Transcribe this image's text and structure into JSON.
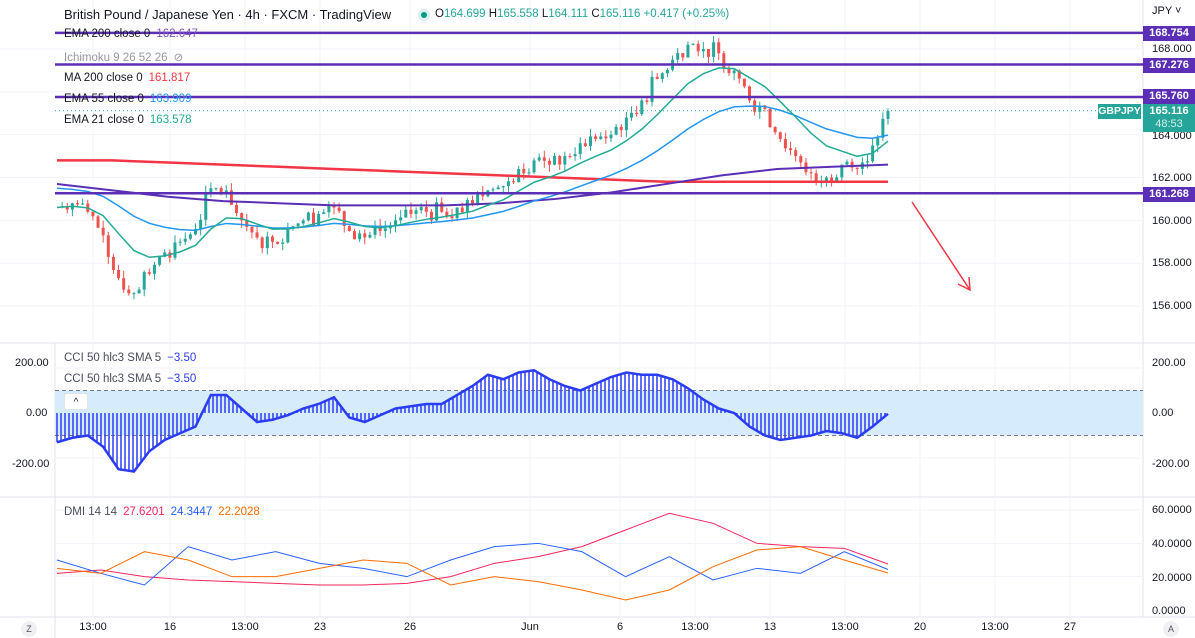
{
  "header": {
    "title": "British Pound / Japanese Yen · 4h · FXCM · TradingView",
    "open_label": "O",
    "open": "164.699",
    "high_label": "H",
    "high": "165.558",
    "low_label": "L",
    "low": "164.111",
    "close_label": "C",
    "close": "165.116",
    "change": "+0.417 (+0.25%)"
  },
  "legend": [
    {
      "label": "EMA 200 close 0",
      "value": "162.647",
      "color": "#7e57c2"
    },
    {
      "label": "Ichimoku 9 26 52 26",
      "value": "",
      "color": "#9598a1"
    },
    {
      "label": "MA 200 close 0",
      "value": "161.817",
      "color": "#f23645"
    },
    {
      "label": "EMA 55 close 0",
      "value": "163.909",
      "color": "#2196f3"
    },
    {
      "label": "EMA 21 close 0",
      "value": "163.578",
      "color": "#22ab94"
    }
  ],
  "price_axis": {
    "currency": "JPY",
    "ticks": [
      "168.000",
      "164.000",
      "162.000",
      "160.000",
      "158.000",
      "156.000"
    ],
    "levels": [
      "168.754",
      "167.276",
      "165.760",
      "161.268"
    ],
    "symbol": "GBPJPY",
    "last_price": "165.116",
    "countdown": "48:53"
  },
  "cci": {
    "legend1": "CCI 50 hlc3 SMA 5",
    "value1": "−3.50",
    "legend2": "CCI 50 hlc3 SMA 5",
    "value2": "−3.50",
    "ticks": [
      "200.00",
      "0.00",
      "-200.00"
    ],
    "collapse": "^"
  },
  "dmi": {
    "legend": "DMI 14 14",
    "adx": "27.6201",
    "plus": "24.3447",
    "minus": "22.2028",
    "ticks": [
      "60.0000",
      "40.0000",
      "20.0000",
      "0.0000"
    ]
  },
  "time_axis": [
    "13:00",
    "16",
    "13:00",
    "23",
    "26",
    "Jun",
    "6",
    "13:00",
    "13",
    "13:00",
    "20",
    "13:00",
    "27"
  ],
  "buttons": {
    "left": "Z",
    "right": "A"
  },
  "colors": {
    "up": "#26a69a",
    "down": "#ef5350",
    "level": "#5b2fb5",
    "arrow": "#f23645",
    "cci": "#2b3cf5",
    "band": "#d6ebfb"
  },
  "chart_data": {
    "type": "candlestick",
    "closes": [
      160.6,
      160.8,
      160.4,
      159.3,
      157.3,
      156.6,
      157.5,
      158.5,
      159.0,
      159.6,
      161.5,
      161.4,
      160.0,
      159.2,
      159.0,
      159.6,
      160.0,
      160.3,
      160.6,
      159.5,
      159.2,
      159.5,
      160.0,
      160.3,
      160.4,
      160.4,
      160.6,
      160.8,
      161.4,
      161.6,
      162.4,
      162.8,
      162.6,
      163.0,
      163.6,
      163.8,
      164.0,
      164.8,
      165.6,
      166.6,
      167.5,
      168.2,
      168.0,
      167.8,
      167.0,
      165.6,
      165.2,
      163.8,
      163.0,
      162.2,
      162.0,
      162.6,
      162.4,
      163.5,
      165.1
    ],
    "ema200": [
      161.7,
      161.4,
      161.1,
      160.9,
      160.8,
      160.7,
      160.7,
      160.7,
      160.8,
      161.0,
      161.3,
      161.7,
      162.1,
      162.4,
      162.5,
      162.6
    ],
    "ma200": [
      162.8,
      162.8,
      162.7,
      162.6,
      162.5,
      162.4,
      162.3,
      162.2,
      162.1,
      162.0,
      161.9,
      161.8,
      161.8,
      161.8,
      161.8,
      161.8
    ],
    "cci": [
      -130,
      -110,
      -100,
      -150,
      -250,
      -260,
      -170,
      -120,
      -90,
      -60,
      80,
      80,
      20,
      -40,
      -30,
      -10,
      20,
      40,
      70,
      -20,
      -40,
      -10,
      20,
      30,
      40,
      40,
      80,
      120,
      170,
      150,
      180,
      190,
      150,
      120,
      100,
      130,
      160,
      180,
      170,
      170,
      150,
      110,
      60,
      20,
      0,
      -60,
      -100,
      -120,
      -110,
      -100,
      -80,
      -90,
      -110,
      -60,
      -3.5
    ],
    "adx": [
      22,
      24,
      20,
      18,
      17,
      16,
      15,
      15,
      16,
      20,
      28,
      32,
      38,
      48,
      58,
      52,
      40,
      38,
      37,
      27.6
    ],
    "plus_di": [
      30,
      22,
      15,
      38,
      30,
      35,
      28,
      25,
      20,
      30,
      38,
      40,
      35,
      20,
      32,
      18,
      25,
      22,
      35,
      24.3
    ],
    "minus_di": [
      25,
      22,
      35,
      30,
      20,
      20,
      25,
      30,
      28,
      15,
      20,
      17,
      12,
      6,
      12,
      26,
      36,
      38,
      30,
      22.2
    ],
    "ylim": [
      155,
      169.5
    ]
  }
}
